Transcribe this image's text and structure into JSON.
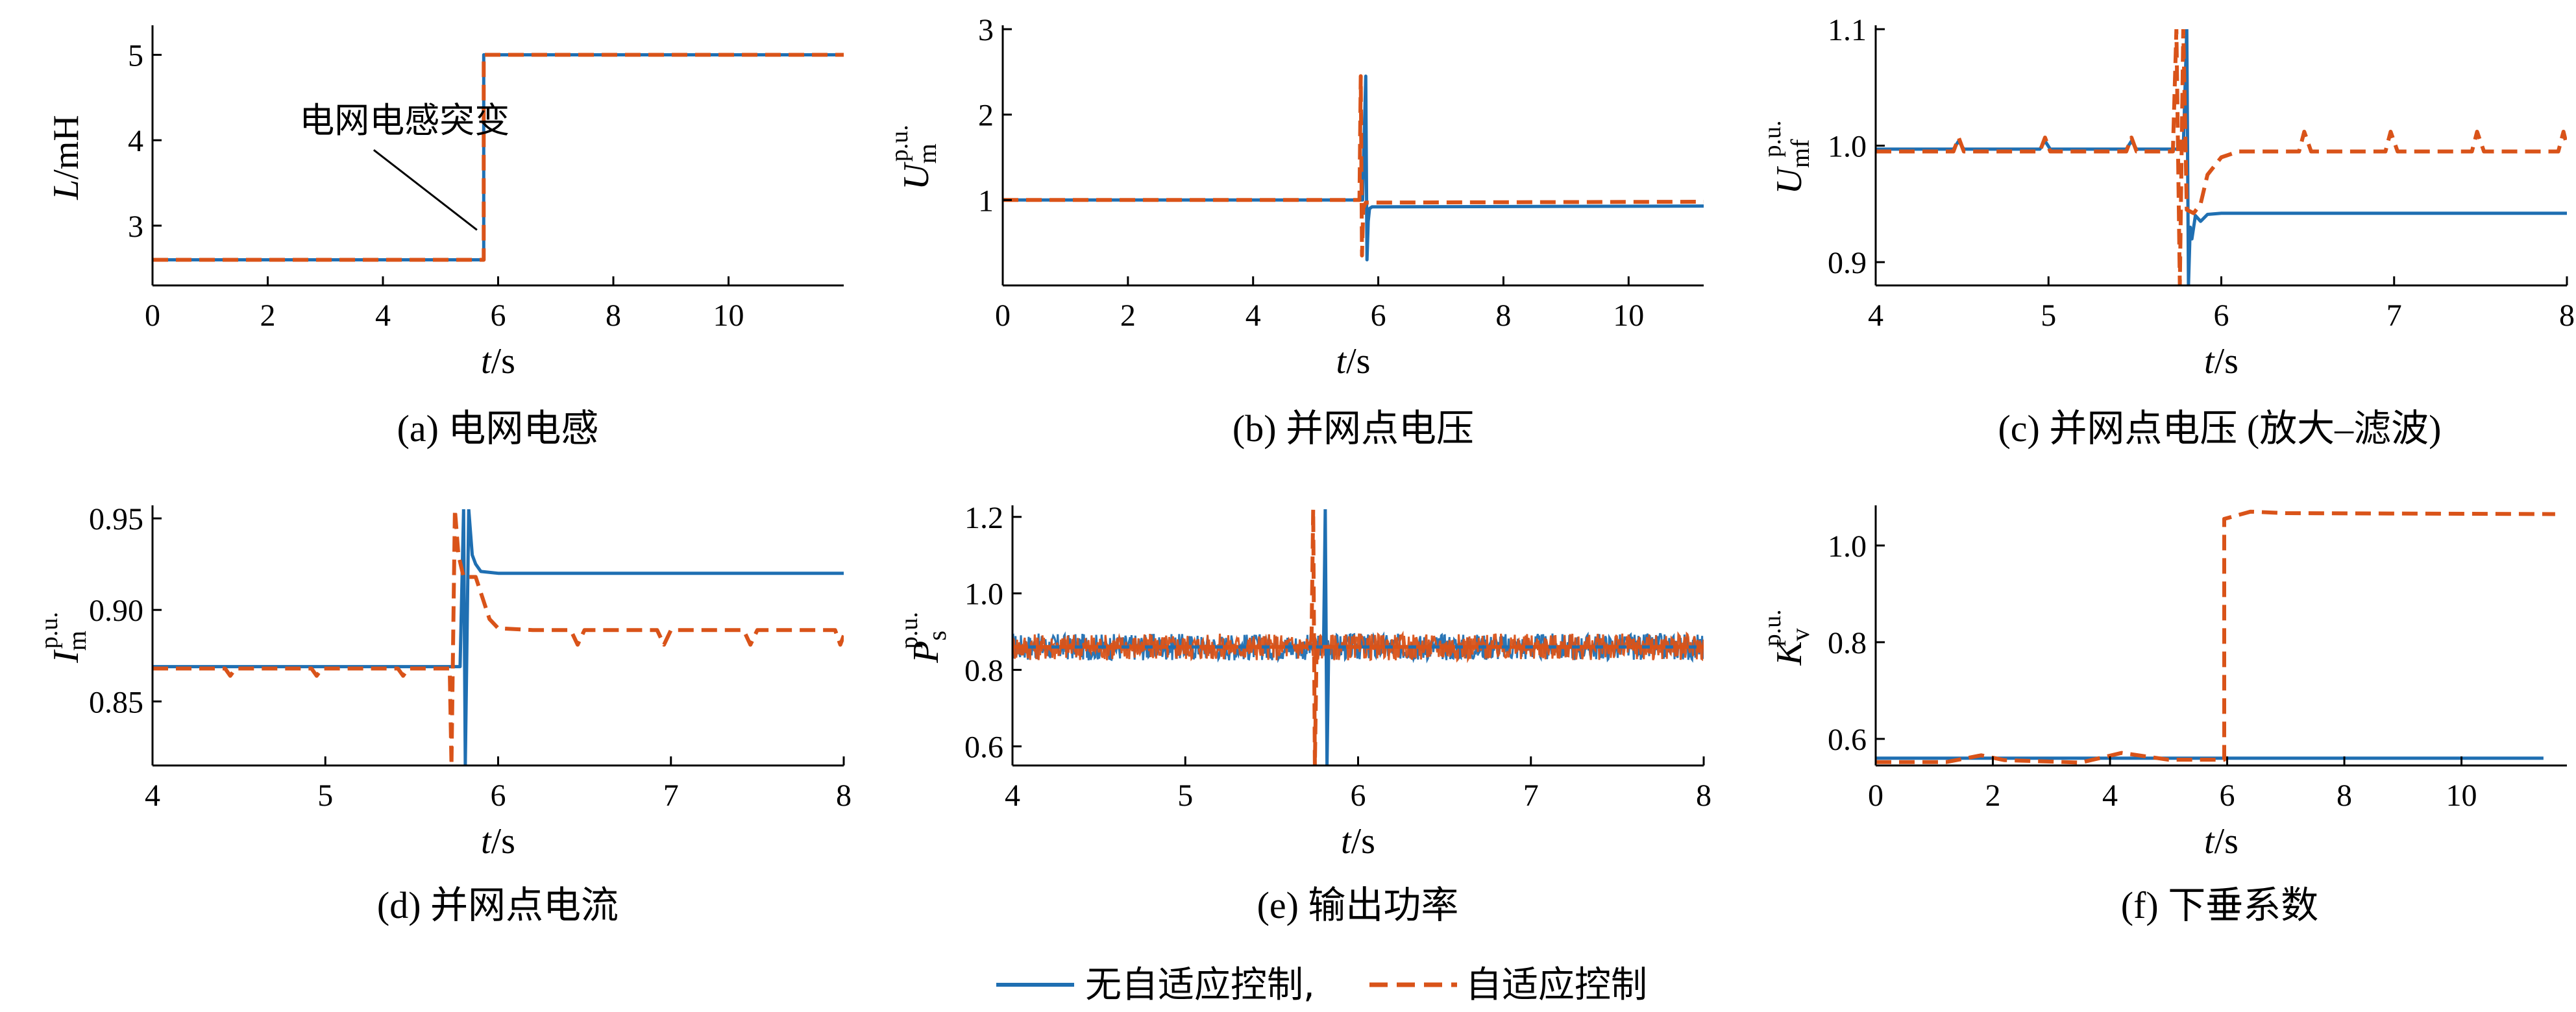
{
  "colors": {
    "no_adaptive": "#1f6fb2",
    "adaptive": "#d95319",
    "axis": "#000000"
  },
  "legend": {
    "items": [
      {
        "label": "无自适应控制,",
        "style": "solid",
        "color": "#1f6fb2"
      },
      {
        "label": "自适应控制",
        "style": "dashed",
        "color": "#d95319"
      }
    ]
  },
  "chart_data": [
    {
      "id": "a",
      "type": "line",
      "caption": "(a)  电网电感",
      "xlabel": "t",
      "xunit": "s",
      "ylabel_main": "L",
      "ylabel_sup": "",
      "ylabel_sub": "",
      "yunit": "mH",
      "xlim": [
        0,
        12
      ],
      "ylim": [
        2.3,
        5.3
      ],
      "xticks": [
        0,
        2,
        4,
        6,
        8,
        10
      ],
      "yticks": [
        3,
        4,
        5
      ],
      "annotation": {
        "text": "电网电感突变",
        "point": [
          5.7,
          2.95
        ],
        "label_at": [
          3.0,
          4.0
        ]
      },
      "series": [
        {
          "key": "no_adaptive",
          "x": [
            0,
            5.75,
            5.75,
            12
          ],
          "y": [
            2.6,
            2.6,
            5.0,
            5.0
          ]
        },
        {
          "key": "adaptive",
          "x": [
            0,
            5.75,
            5.75,
            12
          ],
          "y": [
            2.6,
            2.6,
            5.0,
            5.0
          ]
        }
      ]
    },
    {
      "id": "b",
      "type": "line",
      "caption": "(b)  并网点电压",
      "xlabel": "t",
      "xunit": "s",
      "ylabel_main": "U",
      "ylabel_sup": "p.u.",
      "ylabel_sub": "m",
      "yunit": "",
      "xlim": [
        0,
        11.2
      ],
      "ylim": [
        0,
        3
      ],
      "xticks": [
        0,
        2,
        4,
        6,
        8,
        10
      ],
      "yticks": [
        1,
        2,
        3
      ],
      "series": [
        {
          "key": "no_adaptive",
          "x": [
            0,
            5.75,
            5.8,
            5.82,
            5.84,
            5.86,
            5.9,
            11.2
          ],
          "y": [
            1.0,
            1.0,
            2.45,
            0.3,
            0.75,
            0.9,
            0.92,
            0.93
          ]
        },
        {
          "key": "adaptive",
          "x": [
            0,
            5.7,
            5.72,
            5.74,
            5.76,
            5.8,
            11.2
          ],
          "y": [
            1.0,
            1.0,
            2.45,
            0.35,
            0.9,
            0.97,
            0.98
          ]
        }
      ]
    },
    {
      "id": "c",
      "type": "line",
      "caption": "(c)  并网点电压 (放大–滤波)",
      "xlabel": "t",
      "xunit": "s",
      "ylabel_main": "U",
      "ylabel_sup": "p.u.",
      "ylabel_sub": "mf",
      "yunit": "",
      "xlim": [
        4,
        8
      ],
      "ylim": [
        0.88,
        1.1
      ],
      "xticks": [
        4,
        5,
        6,
        7,
        8
      ],
      "yticks": [
        0.9,
        1.0,
        1.1
      ],
      "ytick_labels": [
        "0.9",
        "1.0",
        "1.1"
      ],
      "series": [
        {
          "key": "no_adaptive",
          "x": [
            4,
            4.45,
            4.48,
            4.51,
            4.95,
            4.98,
            5.01,
            5.45,
            5.48,
            5.51,
            5.78,
            5.8,
            5.81,
            5.82,
            5.83,
            5.85,
            5.88,
            5.92,
            6.0,
            7.0,
            8.0
          ],
          "y": [
            0.997,
            0.997,
            1.004,
            0.997,
            0.997,
            1.004,
            0.997,
            0.997,
            1.004,
            0.997,
            0.997,
            1.1,
            0.88,
            0.93,
            0.92,
            0.94,
            0.935,
            0.941,
            0.942,
            0.942,
            0.942
          ]
        },
        {
          "key": "adaptive",
          "x": [
            4,
            4.45,
            4.48,
            4.51,
            4.95,
            4.98,
            5.01,
            5.45,
            5.48,
            5.51,
            5.72,
            5.74,
            5.76,
            5.78,
            5.8,
            5.84,
            5.88,
            5.92,
            6.0,
            6.1,
            6.45,
            6.48,
            6.52,
            6.95,
            6.98,
            7.02,
            7.45,
            7.48,
            7.52,
            7.95,
            7.98,
            8.0
          ],
          "y": [
            0.995,
            0.995,
            1.007,
            0.995,
            0.995,
            1.007,
            0.995,
            0.995,
            1.007,
            0.995,
            0.995,
            1.1,
            0.88,
            1.1,
            0.945,
            0.942,
            0.95,
            0.975,
            0.99,
            0.995,
            0.995,
            1.012,
            0.995,
            0.995,
            1.012,
            0.995,
            0.995,
            1.012,
            0.995,
            0.995,
            1.012,
            1.0
          ]
        }
      ]
    },
    {
      "id": "d",
      "type": "line",
      "caption": "(d)  并网点电流",
      "xlabel": "t",
      "xunit": "s",
      "ylabel_main": "I",
      "ylabel_sup": "p.u.",
      "ylabel_sub": "m",
      "yunit": "",
      "xlim": [
        4,
        8
      ],
      "ylim": [
        0.815,
        0.955
      ],
      "xticks": [
        4,
        5,
        6,
        7,
        8
      ],
      "yticks": [
        0.85,
        0.9,
        0.95
      ],
      "ytick_labels": [
        "0.85",
        "0.90",
        "0.95"
      ],
      "series": [
        {
          "key": "no_adaptive",
          "x": [
            4,
            5.78,
            5.8,
            5.81,
            5.83,
            5.85,
            5.87,
            5.9,
            6.0,
            8.0
          ],
          "y": [
            0.869,
            0.869,
            0.955,
            0.815,
            0.955,
            0.93,
            0.925,
            0.921,
            0.92,
            0.92
          ]
        },
        {
          "key": "adaptive",
          "x": [
            4,
            4.42,
            4.45,
            4.48,
            4.92,
            4.95,
            4.98,
            5.42,
            5.45,
            5.48,
            5.72,
            5.73,
            5.75,
            5.77,
            5.8,
            5.87,
            5.95,
            6.0,
            6.2,
            6.42,
            6.46,
            6.5,
            6.92,
            6.96,
            7.0,
            7.42,
            7.46,
            7.5,
            7.95,
            7.98,
            8.0
          ],
          "y": [
            0.868,
            0.868,
            0.864,
            0.868,
            0.868,
            0.864,
            0.868,
            0.868,
            0.864,
            0.868,
            0.868,
            0.815,
            0.955,
            0.93,
            0.918,
            0.918,
            0.895,
            0.89,
            0.889,
            0.889,
            0.881,
            0.889,
            0.889,
            0.881,
            0.889,
            0.889,
            0.881,
            0.889,
            0.889,
            0.881,
            0.886
          ]
        }
      ]
    },
    {
      "id": "e",
      "type": "line",
      "caption": "(e)  输出功率",
      "xlabel": "t",
      "xunit": "s",
      "ylabel_main": "P",
      "ylabel_sup": "p.u.",
      "ylabel_sub": "s",
      "yunit": "",
      "xlim": [
        4,
        8
      ],
      "ylim": [
        0.55,
        1.22
      ],
      "xticks": [
        4,
        5,
        6,
        7,
        8
      ],
      "yticks": [
        0.6,
        0.8,
        1.0,
        1.2
      ],
      "ytick_labels": [
        "0.6",
        "0.8",
        "1.0",
        "1.2"
      ],
      "noise_band": {
        "center": 0.86,
        "halfwidth": 0.035
      },
      "series": [
        {
          "key": "no_adaptive",
          "x": [
            4,
            5.8,
            5.81,
            5.82,
            5.83,
            8.0
          ],
          "y": [
            0.86,
            0.86,
            1.22,
            0.55,
            0.86,
            0.86
          ]
        },
        {
          "key": "adaptive",
          "x": [
            4,
            5.73,
            5.74,
            5.75,
            5.76,
            8.0
          ],
          "y": [
            0.86,
            0.86,
            1.22,
            0.55,
            0.86,
            0.86
          ]
        }
      ]
    },
    {
      "id": "f",
      "type": "line",
      "caption": "(f)  下垂系数",
      "xlabel": "t",
      "xunit": "s",
      "ylabel_main": "K",
      "ylabel_sup": "p.u.",
      "ylabel_sub": "v",
      "yunit": "",
      "xlim": [
        0,
        11.8
      ],
      "ylim": [
        0.545,
        1.075
      ],
      "xticks": [
        0,
        2,
        4,
        6,
        8,
        10
      ],
      "yticks": [
        0.6,
        0.8,
        1.0
      ],
      "ytick_labels": [
        "0.6",
        "0.8",
        "1.0"
      ],
      "series": [
        {
          "key": "no_adaptive",
          "x": [
            0,
            11.4
          ],
          "y": [
            0.56,
            0.56
          ]
        },
        {
          "key": "adaptive",
          "x": [
            0,
            1.2,
            1.8,
            2.2,
            3.5,
            4.2,
            5.0,
            5.95,
            5.95,
            6.4,
            7.0,
            11.6
          ],
          "y": [
            0.552,
            0.552,
            0.566,
            0.556,
            0.551,
            0.571,
            0.557,
            0.557,
            1.055,
            1.07,
            1.067,
            1.065
          ]
        }
      ]
    }
  ]
}
